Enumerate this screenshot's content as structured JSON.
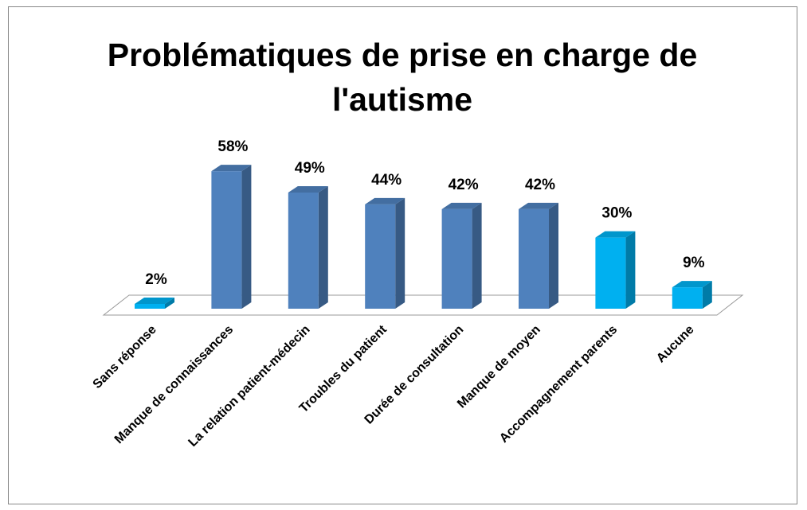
{
  "chart_data": {
    "type": "bar3d",
    "title": [
      "Problématiques de prise en charge de",
      "l'autisme"
    ],
    "categories": [
      "Sans réponse",
      "Manque de connaissances",
      "La relation patient-médecin",
      "Troubles du patient",
      "Durée de consultation",
      "Manque de moyen",
      "Accompagnement parents",
      "Aucune"
    ],
    "values": [
      2,
      58,
      49,
      44,
      42,
      42,
      30,
      9
    ],
    "value_labels": [
      "2%",
      "58%",
      "49%",
      "44%",
      "42%",
      "42%",
      "30%",
      "9%"
    ],
    "colors": [
      "#00b0f0",
      "#4f81bd",
      "#4f81bd",
      "#4f81bd",
      "#4f81bd",
      "#4f81bd",
      "#00b0f0",
      "#00b0f0"
    ]
  }
}
